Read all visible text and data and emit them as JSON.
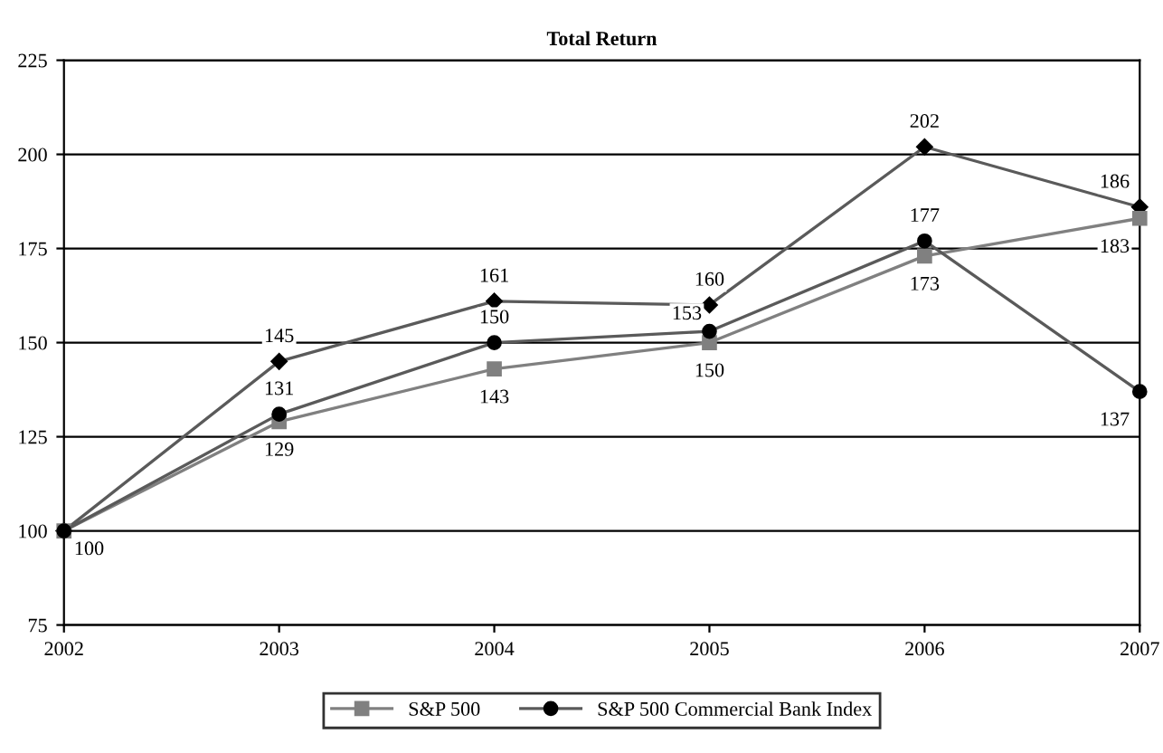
{
  "chart_data": {
    "type": "line",
    "title": "Total Return",
    "x": [
      2002,
      2003,
      2004,
      2005,
      2006,
      2007
    ],
    "xlim": [
      2002,
      2007
    ],
    "xticks": [
      2002,
      2003,
      2004,
      2005,
      2006,
      2007
    ],
    "ylim": [
      75,
      225
    ],
    "yticks": [
      75,
      100,
      125,
      150,
      175,
      200,
      225
    ],
    "grid": "y",
    "legend": "bottom",
    "series": [
      {
        "color": "#5a5a5a",
        "marker": "diamond",
        "values": [
          100,
          145,
          161,
          160,
          202,
          186
        ],
        "value_labels": [
          null,
          "145",
          "161",
          "160",
          "202",
          "186"
        ]
      },
      {
        "name": "S&P 500",
        "color": "#808080",
        "marker": "square",
        "values": [
          100,
          129,
          143,
          150,
          173,
          183
        ],
        "value_labels": [
          "100",
          "129",
          "143",
          "150",
          "173",
          "183"
        ]
      },
      {
        "name": "S&P 500 Commercial Bank Index",
        "color": "#5a5a5a",
        "marker": "circle",
        "values": [
          100,
          131,
          150,
          153,
          177,
          137
        ],
        "value_labels": [
          null,
          "131",
          "150",
          "153",
          "177",
          "137"
        ]
      }
    ]
  }
}
